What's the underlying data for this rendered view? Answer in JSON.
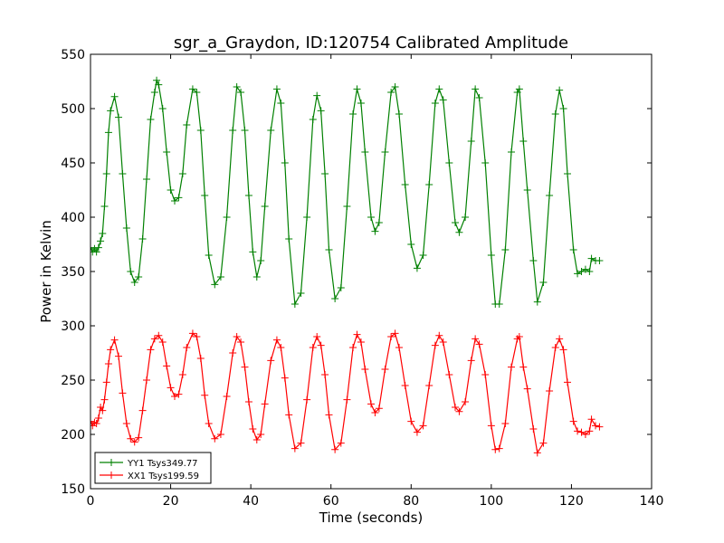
{
  "chart_data": {
    "type": "line",
    "title": "sgr_a_Graydon, ID:120754 Calibrated Amplitude",
    "xlabel": "Time (seconds)",
    "ylabel": "Power in Kelvin",
    "xlim": [
      0,
      140
    ],
    "ylim": [
      150,
      550
    ],
    "xticks": [
      0,
      20,
      40,
      60,
      80,
      100,
      120,
      140
    ],
    "yticks": [
      150,
      200,
      250,
      300,
      350,
      400,
      450,
      500,
      550
    ],
    "grid": false,
    "legend_position": "lower-left",
    "marker": "plus",
    "series": [
      {
        "name": "YY1 Tsys349.77",
        "color": "#008000",
        "points": [
          [
            0,
            372
          ],
          [
            0.5,
            368
          ],
          [
            1,
            371
          ],
          [
            1.5,
            368
          ],
          [
            2,
            372
          ],
          [
            2.5,
            378
          ],
          [
            3,
            385
          ],
          [
            3.5,
            410
          ],
          [
            4,
            440
          ],
          [
            4.5,
            478
          ],
          [
            5,
            498
          ],
          [
            6,
            511
          ],
          [
            7,
            492
          ],
          [
            8,
            440
          ],
          [
            9,
            390
          ],
          [
            10,
            350
          ],
          [
            11,
            340
          ],
          [
            12,
            345
          ],
          [
            13,
            380
          ],
          [
            14,
            435
          ],
          [
            15,
            490
          ],
          [
            16,
            515
          ],
          [
            16.5,
            526
          ],
          [
            17,
            522
          ],
          [
            18,
            500
          ],
          [
            19,
            460
          ],
          [
            20,
            425
          ],
          [
            21,
            415
          ],
          [
            22,
            418
          ],
          [
            23,
            440
          ],
          [
            24,
            485
          ],
          [
            25.5,
            518
          ],
          [
            26.5,
            515
          ],
          [
            27.5,
            480
          ],
          [
            28.5,
            420
          ],
          [
            29.5,
            365
          ],
          [
            31,
            338
          ],
          [
            32.5,
            345
          ],
          [
            34,
            400
          ],
          [
            35.5,
            480
          ],
          [
            36.5,
            520
          ],
          [
            37.5,
            515
          ],
          [
            38.5,
            480
          ],
          [
            39.5,
            420
          ],
          [
            40.5,
            368
          ],
          [
            41.5,
            345
          ],
          [
            42.5,
            360
          ],
          [
            43.5,
            410
          ],
          [
            45,
            480
          ],
          [
            46.5,
            518
          ],
          [
            47.5,
            505
          ],
          [
            48.5,
            450
          ],
          [
            49.5,
            380
          ],
          [
            51,
            320
          ],
          [
            52.5,
            330
          ],
          [
            54,
            400
          ],
          [
            55.5,
            490
          ],
          [
            56.5,
            512
          ],
          [
            57.5,
            498
          ],
          [
            58.5,
            440
          ],
          [
            59.5,
            370
          ],
          [
            61,
            325
          ],
          [
            62.5,
            335
          ],
          [
            64,
            410
          ],
          [
            65.5,
            495
          ],
          [
            66.5,
            518
          ],
          [
            67.5,
            505
          ],
          [
            68.5,
            460
          ],
          [
            70,
            400
          ],
          [
            71,
            387
          ],
          [
            72,
            395
          ],
          [
            73.5,
            460
          ],
          [
            75,
            515
          ],
          [
            76,
            520
          ],
          [
            77,
            495
          ],
          [
            78.5,
            430
          ],
          [
            80,
            375
          ],
          [
            81.5,
            353
          ],
          [
            83,
            365
          ],
          [
            84.5,
            430
          ],
          [
            86,
            505
          ],
          [
            87,
            518
          ],
          [
            88,
            508
          ],
          [
            89.5,
            450
          ],
          [
            91,
            395
          ],
          [
            92,
            386
          ],
          [
            93.5,
            400
          ],
          [
            95,
            470
          ],
          [
            96,
            518
          ],
          [
            97,
            510
          ],
          [
            98.5,
            450
          ],
          [
            100,
            365
          ],
          [
            101,
            320
          ],
          [
            102,
            320
          ],
          [
            103.5,
            370
          ],
          [
            105,
            460
          ],
          [
            106.5,
            515
          ],
          [
            107,
            518
          ],
          [
            108,
            470
          ],
          [
            109,
            425
          ],
          [
            110.5,
            360
          ],
          [
            111.5,
            322
          ],
          [
            113,
            340
          ],
          [
            114.5,
            420
          ],
          [
            116,
            495
          ],
          [
            117,
            517
          ],
          [
            118,
            500
          ],
          [
            119,
            440
          ],
          [
            120.5,
            370
          ],
          [
            121.5,
            348
          ],
          [
            122.5,
            350
          ],
          [
            123.5,
            352
          ],
          [
            124.5,
            350
          ],
          [
            125,
            362
          ],
          [
            126,
            360
          ],
          [
            127,
            360
          ]
        ]
      },
      {
        "name": "XX1 Tsys199.59",
        "color": "#ff0000",
        "points": [
          [
            0,
            212
          ],
          [
            0.5,
            208
          ],
          [
            1,
            211
          ],
          [
            1.5,
            210
          ],
          [
            2,
            215
          ],
          [
            2.5,
            225
          ],
          [
            3,
            222
          ],
          [
            3.5,
            232
          ],
          [
            4,
            248
          ],
          [
            4.5,
            265
          ],
          [
            5,
            278
          ],
          [
            6,
            287
          ],
          [
            7,
            272
          ],
          [
            8,
            238
          ],
          [
            9,
            210
          ],
          [
            10,
            196
          ],
          [
            11,
            193
          ],
          [
            12,
            197
          ],
          [
            13,
            222
          ],
          [
            14,
            250
          ],
          [
            15,
            278
          ],
          [
            16,
            288
          ],
          [
            17,
            291
          ],
          [
            18,
            285
          ],
          [
            19,
            263
          ],
          [
            20,
            243
          ],
          [
            21,
            235
          ],
          [
            22,
            237
          ],
          [
            23,
            255
          ],
          [
            24,
            280
          ],
          [
            25.5,
            293
          ],
          [
            26.5,
            290
          ],
          [
            27.5,
            270
          ],
          [
            28.5,
            236
          ],
          [
            29.5,
            210
          ],
          [
            31,
            196
          ],
          [
            32.5,
            200
          ],
          [
            34,
            235
          ],
          [
            35.5,
            275
          ],
          [
            36.5,
            290
          ],
          [
            37.5,
            285
          ],
          [
            38.5,
            262
          ],
          [
            39.5,
            230
          ],
          [
            40.5,
            205
          ],
          [
            41.5,
            195
          ],
          [
            42.5,
            200
          ],
          [
            43.5,
            228
          ],
          [
            45,
            268
          ],
          [
            46.5,
            287
          ],
          [
            47.5,
            280
          ],
          [
            48.5,
            252
          ],
          [
            49.5,
            218
          ],
          [
            51,
            187
          ],
          [
            52.5,
            192
          ],
          [
            54,
            232
          ],
          [
            55.5,
            280
          ],
          [
            56.5,
            290
          ],
          [
            57.5,
            282
          ],
          [
            58.5,
            255
          ],
          [
            59.5,
            218
          ],
          [
            61,
            186
          ],
          [
            62.5,
            192
          ],
          [
            64,
            232
          ],
          [
            65.5,
            280
          ],
          [
            66.5,
            292
          ],
          [
            67.5,
            285
          ],
          [
            68.5,
            260
          ],
          [
            70,
            228
          ],
          [
            71,
            220
          ],
          [
            72,
            224
          ],
          [
            73.5,
            260
          ],
          [
            75,
            290
          ],
          [
            76,
            293
          ],
          [
            77,
            280
          ],
          [
            78.5,
            245
          ],
          [
            80,
            212
          ],
          [
            81.5,
            202
          ],
          [
            83,
            208
          ],
          [
            84.5,
            245
          ],
          [
            86,
            282
          ],
          [
            87,
            291
          ],
          [
            88,
            285
          ],
          [
            89.5,
            255
          ],
          [
            91,
            225
          ],
          [
            92,
            221
          ],
          [
            93.5,
            230
          ],
          [
            95,
            268
          ],
          [
            96,
            288
          ],
          [
            97,
            283
          ],
          [
            98.5,
            255
          ],
          [
            100,
            208
          ],
          [
            101,
            186
          ],
          [
            102,
            187
          ],
          [
            103.5,
            210
          ],
          [
            105,
            262
          ],
          [
            106.5,
            288
          ],
          [
            107,
            290
          ],
          [
            108,
            262
          ],
          [
            109,
            242
          ],
          [
            110.5,
            205
          ],
          [
            111.5,
            183
          ],
          [
            113,
            192
          ],
          [
            114.5,
            240
          ],
          [
            116,
            280
          ],
          [
            117,
            288
          ],
          [
            118,
            278
          ],
          [
            119,
            248
          ],
          [
            120.5,
            212
          ],
          [
            121.5,
            203
          ],
          [
            122.5,
            202
          ],
          [
            123.5,
            200
          ],
          [
            124.5,
            203
          ],
          [
            125,
            214
          ],
          [
            126,
            208
          ],
          [
            127,
            207
          ]
        ]
      }
    ]
  }
}
